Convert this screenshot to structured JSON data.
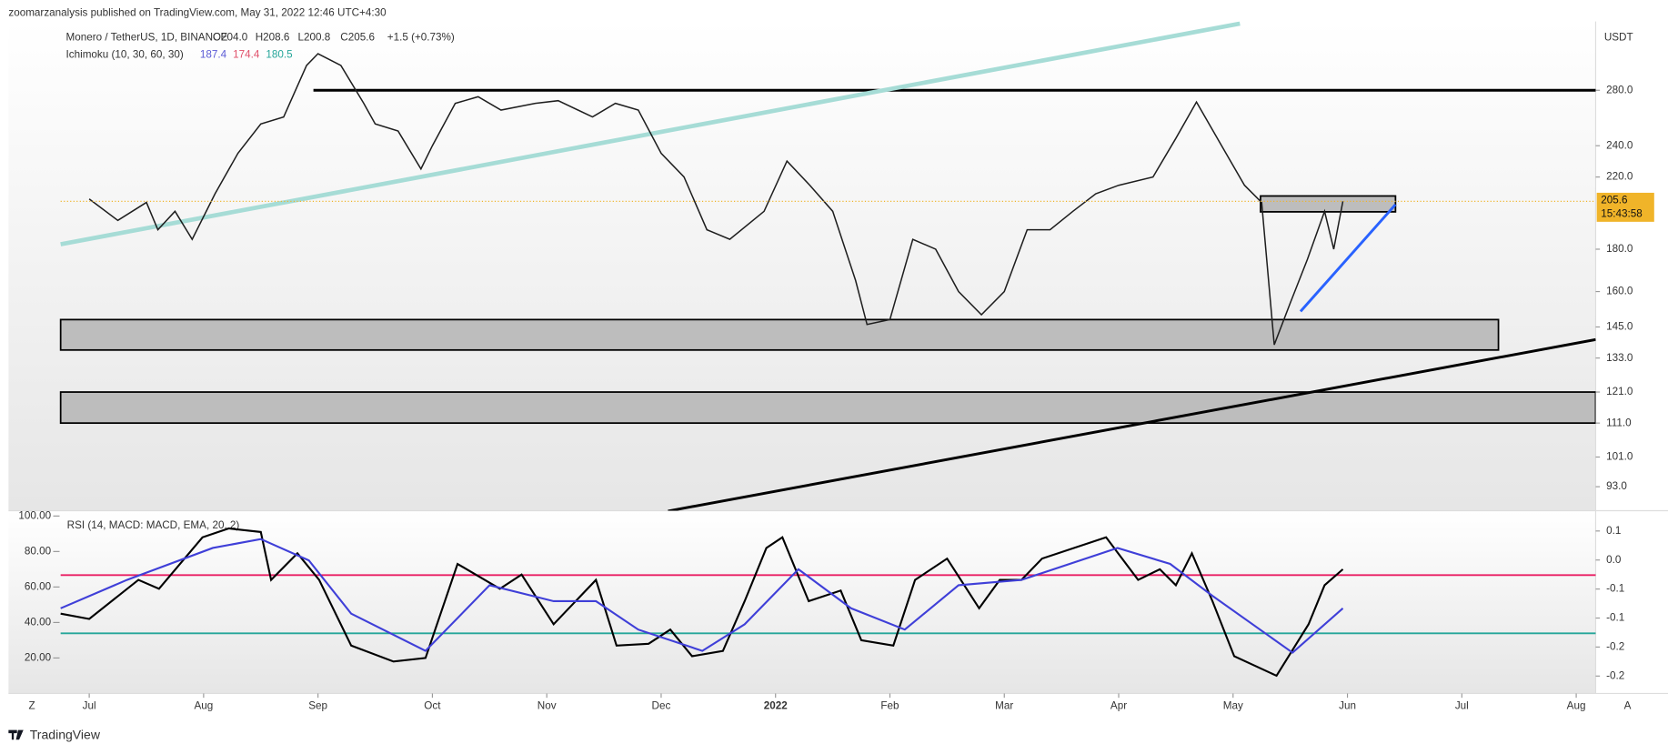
{
  "header": {
    "publisher": "zoomarzanalysis published on TradingView.com, May 31, 2022 12:46 UTC+4:30",
    "logo": "TradingView"
  },
  "toolbar": {
    "left": "Z",
    "right": "A"
  },
  "chart_data": [
    {
      "type": "line",
      "title": "Monero / TetherUS, 1D, BINANCE",
      "ohlc": [
        "O204.0",
        "H208.6",
        "L200.8",
        "C205.6"
      ],
      "change": "+1.5 (+0.73%)",
      "indicator": "Ichimoku (10, 30, 60, 30)",
      "indicator_values": [
        {
          "value": 187.4,
          "color": "#5b5bd6"
        },
        {
          "value": 174.4,
          "color": "#e0506a"
        },
        {
          "value": 180.5,
          "color": "#26a69a"
        }
      ],
      "y_unit": "USDT",
      "log_scale": true,
      "grid": false,
      "ylim": [
        87,
        339
      ],
      "yticks": [
        {
          "value": 280,
          "label": "280.0"
        },
        {
          "value": 240,
          "label": "240.0"
        },
        {
          "value": 220,
          "label": "220.0"
        },
        {
          "value": 180,
          "label": "180.0"
        },
        {
          "value": 160,
          "label": "160.0"
        },
        {
          "value": 145,
          "label": "145.0"
        },
        {
          "value": 133,
          "label": "133.0"
        },
        {
          "value": 121,
          "label": "121.0"
        },
        {
          "value": 111,
          "label": "111.0"
        },
        {
          "value": 101,
          "label": "101.0"
        },
        {
          "value": 93,
          "label": "93.0"
        }
      ],
      "last_price": {
        "value": 205.6,
        "countdown": "15:43:58",
        "color": "#f0b429"
      },
      "xlim": [
        -0.25,
        13.17
      ],
      "xticks": [
        {
          "value": 0,
          "label": "Jul"
        },
        {
          "value": 1,
          "label": "Aug"
        },
        {
          "value": 2,
          "label": "Sep"
        },
        {
          "value": 3,
          "label": "Oct"
        },
        {
          "value": 4,
          "label": "Nov"
        },
        {
          "value": 5,
          "label": "Dec"
        },
        {
          "value": 6,
          "label": "2022"
        },
        {
          "value": 7,
          "label": "Feb"
        },
        {
          "value": 8,
          "label": "Mar"
        },
        {
          "value": 9,
          "label": "Apr"
        },
        {
          "value": 10,
          "label": "May"
        },
        {
          "value": 11,
          "label": "Jun"
        },
        {
          "value": 12,
          "label": "Jul"
        },
        {
          "value": 13,
          "label": "Aug"
        }
      ],
      "series": [
        {
          "color": "#1e1e1e",
          "x": [
            0,
            0.25,
            0.5,
            0.6,
            0.75,
            0.9,
            1.1,
            1.3,
            1.5,
            1.7,
            1.9,
            2.0,
            2.2,
            2.4,
            2.5,
            2.7,
            2.9,
            3.0,
            3.2,
            3.4,
            3.6,
            3.9,
            4.1,
            4.4,
            4.6,
            4.8,
            5.0,
            5.2,
            5.4,
            5.6,
            5.9,
            6.1,
            6.3,
            6.5,
            6.7,
            6.8,
            7.0,
            7.2,
            7.4,
            7.6,
            7.8,
            8.0,
            8.2,
            8.4,
            8.6,
            8.8,
            9.0,
            9.3,
            9.5,
            9.68,
            9.9,
            10.1,
            10.25,
            10.36,
            10.5,
            10.65,
            10.8,
            10.88,
            10.96
          ],
          "values": [
            207,
            195,
            205,
            190,
            200,
            185,
            210,
            235,
            255,
            260,
            300,
            310,
            300,
            270,
            255,
            250,
            225,
            240,
            270,
            275,
            265,
            270,
            272,
            260,
            270,
            265,
            235,
            220,
            190,
            185,
            200,
            230,
            215,
            200,
            165,
            146,
            148,
            185,
            180,
            160,
            150,
            160,
            190,
            190,
            200,
            210,
            215,
            220,
            245,
            271,
            240,
            215,
            205,
            138,
            155,
            175,
            200,
            180,
            205.6
          ]
        }
      ],
      "drawings": [
        {
          "kind": "line",
          "color": "#000000",
          "x": [
            1.96,
            13.17
          ],
          "y": [
            280,
            280
          ]
        },
        {
          "kind": "box",
          "color": "#bdbdbd",
          "x": [
            -0.25,
            12.32
          ],
          "y": [
            136,
            148
          ]
        },
        {
          "kind": "box",
          "color": "#bdbdbd",
          "x": [
            -0.25,
            13.17
          ],
          "y": [
            111,
            121
          ]
        },
        {
          "kind": "box",
          "color": "#bdbdbd",
          "x": [
            10.24,
            11.42
          ],
          "y": [
            199.7,
            208.7
          ]
        },
        {
          "kind": "line",
          "color": "#a6dcd6",
          "x": [
            -0.25,
            10.06
          ],
          "y": [
            182.5,
            337
          ]
        },
        {
          "kind": "line",
          "color": "#000000",
          "x": [
            5.06,
            13.17
          ],
          "y": [
            86.9,
            140
          ]
        },
        {
          "kind": "line",
          "color": "#2962ff",
          "x": [
            10.59,
            11.42
          ],
          "y": [
            151.4,
            203.8
          ]
        }
      ]
    },
    {
      "type": "line",
      "title": "RSI (14, MACD: MACD, EMA, 20, 2)",
      "ylim": [
        0,
        103
      ],
      "yticks": [
        {
          "value": 100,
          "label": "100.00"
        },
        {
          "value": 80,
          "label": "80.00"
        },
        {
          "value": 60,
          "label": "60.00"
        },
        {
          "value": 40,
          "label": "40.00"
        },
        {
          "value": 20,
          "label": "20.00"
        }
      ],
      "y2lim": [
        -0.23,
        0.085
      ],
      "y2ticks": [
        {
          "value": 0.05,
          "label": "0.1"
        },
        {
          "value": 0,
          "label": "0.0"
        },
        {
          "value": -0.05,
          "label": "-0.1"
        },
        {
          "value": -0.1,
          "label": "-0.1"
        },
        {
          "value": -0.15,
          "label": "-0.2"
        },
        {
          "value": -0.2,
          "label": "-0.2"
        }
      ],
      "levels": [
        {
          "value": 66.7,
          "color": "#e91e63"
        },
        {
          "value": 33.9,
          "color": "#26a69a"
        }
      ],
      "xlim": [
        -0.25,
        13.17
      ],
      "series": [
        {
          "color": "#000000",
          "x": [
            -0.25,
            0,
            0.43,
            0.61,
            0.99,
            1.22,
            1.5,
            1.59,
            1.82,
            2.01,
            2.29,
            2.66,
            2.94,
            3.22,
            3.59,
            3.78,
            4.06,
            4.43,
            4.61,
            4.89,
            5.08,
            5.27,
            5.54,
            5.73,
            5.92,
            6.06,
            6.29,
            6.57,
            6.75,
            7.03,
            7.22,
            7.5,
            7.78,
            7.96,
            8.15,
            8.33,
            8.89,
            9.17,
            9.36,
            9.5,
            9.64,
            9.82,
            10.01,
            10.38,
            10.66,
            10.8,
            10.96
          ],
          "values": [
            45,
            42,
            64,
            59,
            88,
            93,
            91,
            64,
            79,
            64,
            27,
            18,
            20,
            73,
            59,
            67,
            39,
            64,
            27,
            28,
            36,
            21,
            24,
            52,
            82,
            88,
            52,
            58,
            30,
            27,
            64,
            76,
            48,
            64,
            64,
            76,
            88,
            64,
            70,
            61,
            79,
            52,
            21,
            10,
            39,
            61,
            70
          ]
        },
        {
          "color": "#3f3fd8",
          "x": [
            -0.25,
            0.33,
            1.08,
            1.5,
            1.92,
            2.29,
            2.94,
            3.5,
            4.06,
            4.43,
            4.8,
            5.36,
            5.73,
            6.2,
            6.66,
            7.13,
            7.6,
            8.15,
            8.99,
            9.45,
            9.82,
            10.52,
            10.96
          ],
          "values": [
            48,
            64,
            82,
            87,
            75,
            45,
            24,
            61,
            52,
            52,
            36,
            24,
            39,
            70,
            48,
            36,
            61,
            64,
            82,
            73,
            55,
            23,
            48
          ]
        }
      ]
    }
  ]
}
